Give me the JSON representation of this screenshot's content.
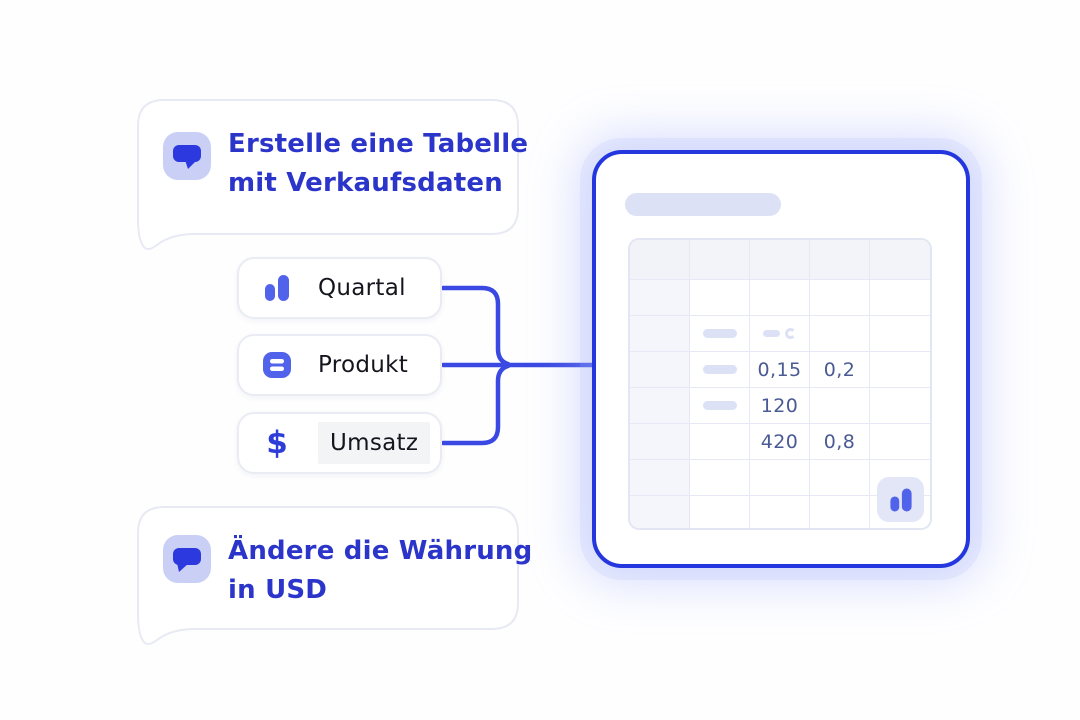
{
  "prompt_bubbles": [
    {
      "lines": [
        "Erstelle eine Tabelle",
        "mit Verkaufsdaten"
      ],
      "icon": "chat-bubble-icon"
    },
    {
      "lines": [
        "Ändere die Währung",
        "in USD"
      ],
      "icon": "chat-bubble-icon"
    }
  ],
  "field_chips": [
    {
      "label": "Quartal",
      "icon": "bar-chart-icon"
    },
    {
      "label": "Produkt",
      "icon": "product-list-icon"
    },
    {
      "label": "Umsatz",
      "icon": "dollar-icon",
      "highlighted": true
    }
  ],
  "dollar_glyph": "$",
  "spreadsheet": {
    "columns": 5,
    "rows": 8,
    "header_row": 1,
    "values": [
      {
        "row": 4,
        "col": 3,
        "text": "0,15"
      },
      {
        "row": 4,
        "col": 4,
        "text": "0,2"
      },
      {
        "row": 5,
        "col": 3,
        "text": "120"
      },
      {
        "row": 6,
        "col": 3,
        "text": "420"
      },
      {
        "row": 6,
        "col": 4,
        "text": "0,8"
      }
    ],
    "placeholder_pills": [
      {
        "row": 3,
        "col": 2
      },
      {
        "row": 4,
        "col": 2
      },
      {
        "row": 5,
        "col": 2
      }
    ],
    "mini_placeholders": [
      {
        "row": 3,
        "col": 3
      }
    ],
    "corner_icon": "bar-chart-icon"
  },
  "colors": {
    "card_border_blue": "#2437df",
    "connector_blue": "#3a49e2",
    "prompt_text_blue": "#2b35c9",
    "icon_blue": "#5163ea",
    "chat_glyph_blue": "#2c39df",
    "table_value_blue": "#4a5b94",
    "lavender_tile": "#c9cff5",
    "placeholder_lavender": "#dce1f5"
  }
}
